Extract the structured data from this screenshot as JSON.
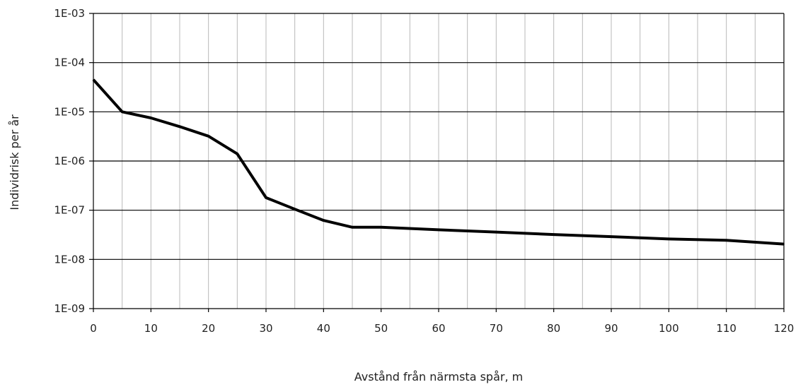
{
  "chart_data": {
    "type": "line",
    "title": "",
    "xlabel": "Avstånd från närmsta spår, m",
    "ylabel": "Individrisk per år",
    "x_ticks": [
      0,
      10,
      20,
      30,
      40,
      50,
      60,
      70,
      80,
      90,
      100,
      110,
      120
    ],
    "x_tick_labels": [
      "0",
      "10",
      "20",
      "30",
      "40",
      "50",
      "60",
      "70",
      "80",
      "90",
      "100",
      "110",
      "120"
    ],
    "xlim": [
      0,
      120
    ],
    "x_minor_grid_step": 5,
    "y_scale": "log",
    "ylim": [
      1e-09,
      0.001
    ],
    "y_ticks": [
      1e-09,
      1e-08,
      1e-07,
      1e-06,
      1e-05,
      0.0001,
      0.001
    ],
    "y_tick_labels": [
      "1E-09",
      "1E-08",
      "1E-07",
      "1E-06",
      "1E-05",
      "1E-04",
      "1E-03"
    ],
    "grid": true,
    "legend": "none",
    "series": [
      {
        "color": "#000000",
        "x": [
          0,
          5,
          10,
          15,
          20,
          25,
          30,
          35,
          40,
          45,
          50,
          60,
          70,
          80,
          90,
          100,
          110,
          120
        ],
        "y": [
          4.5e-05,
          1e-05,
          7.5e-06,
          5e-06,
          3.2e-06,
          1.4e-06,
          1.8e-07,
          1.05e-07,
          6.2e-08,
          4.5e-08,
          4.5e-08,
          4e-08,
          3.6e-08,
          3.2e-08,
          2.9e-08,
          2.6e-08,
          2.45e-08,
          2.05e-08
        ]
      }
    ]
  }
}
